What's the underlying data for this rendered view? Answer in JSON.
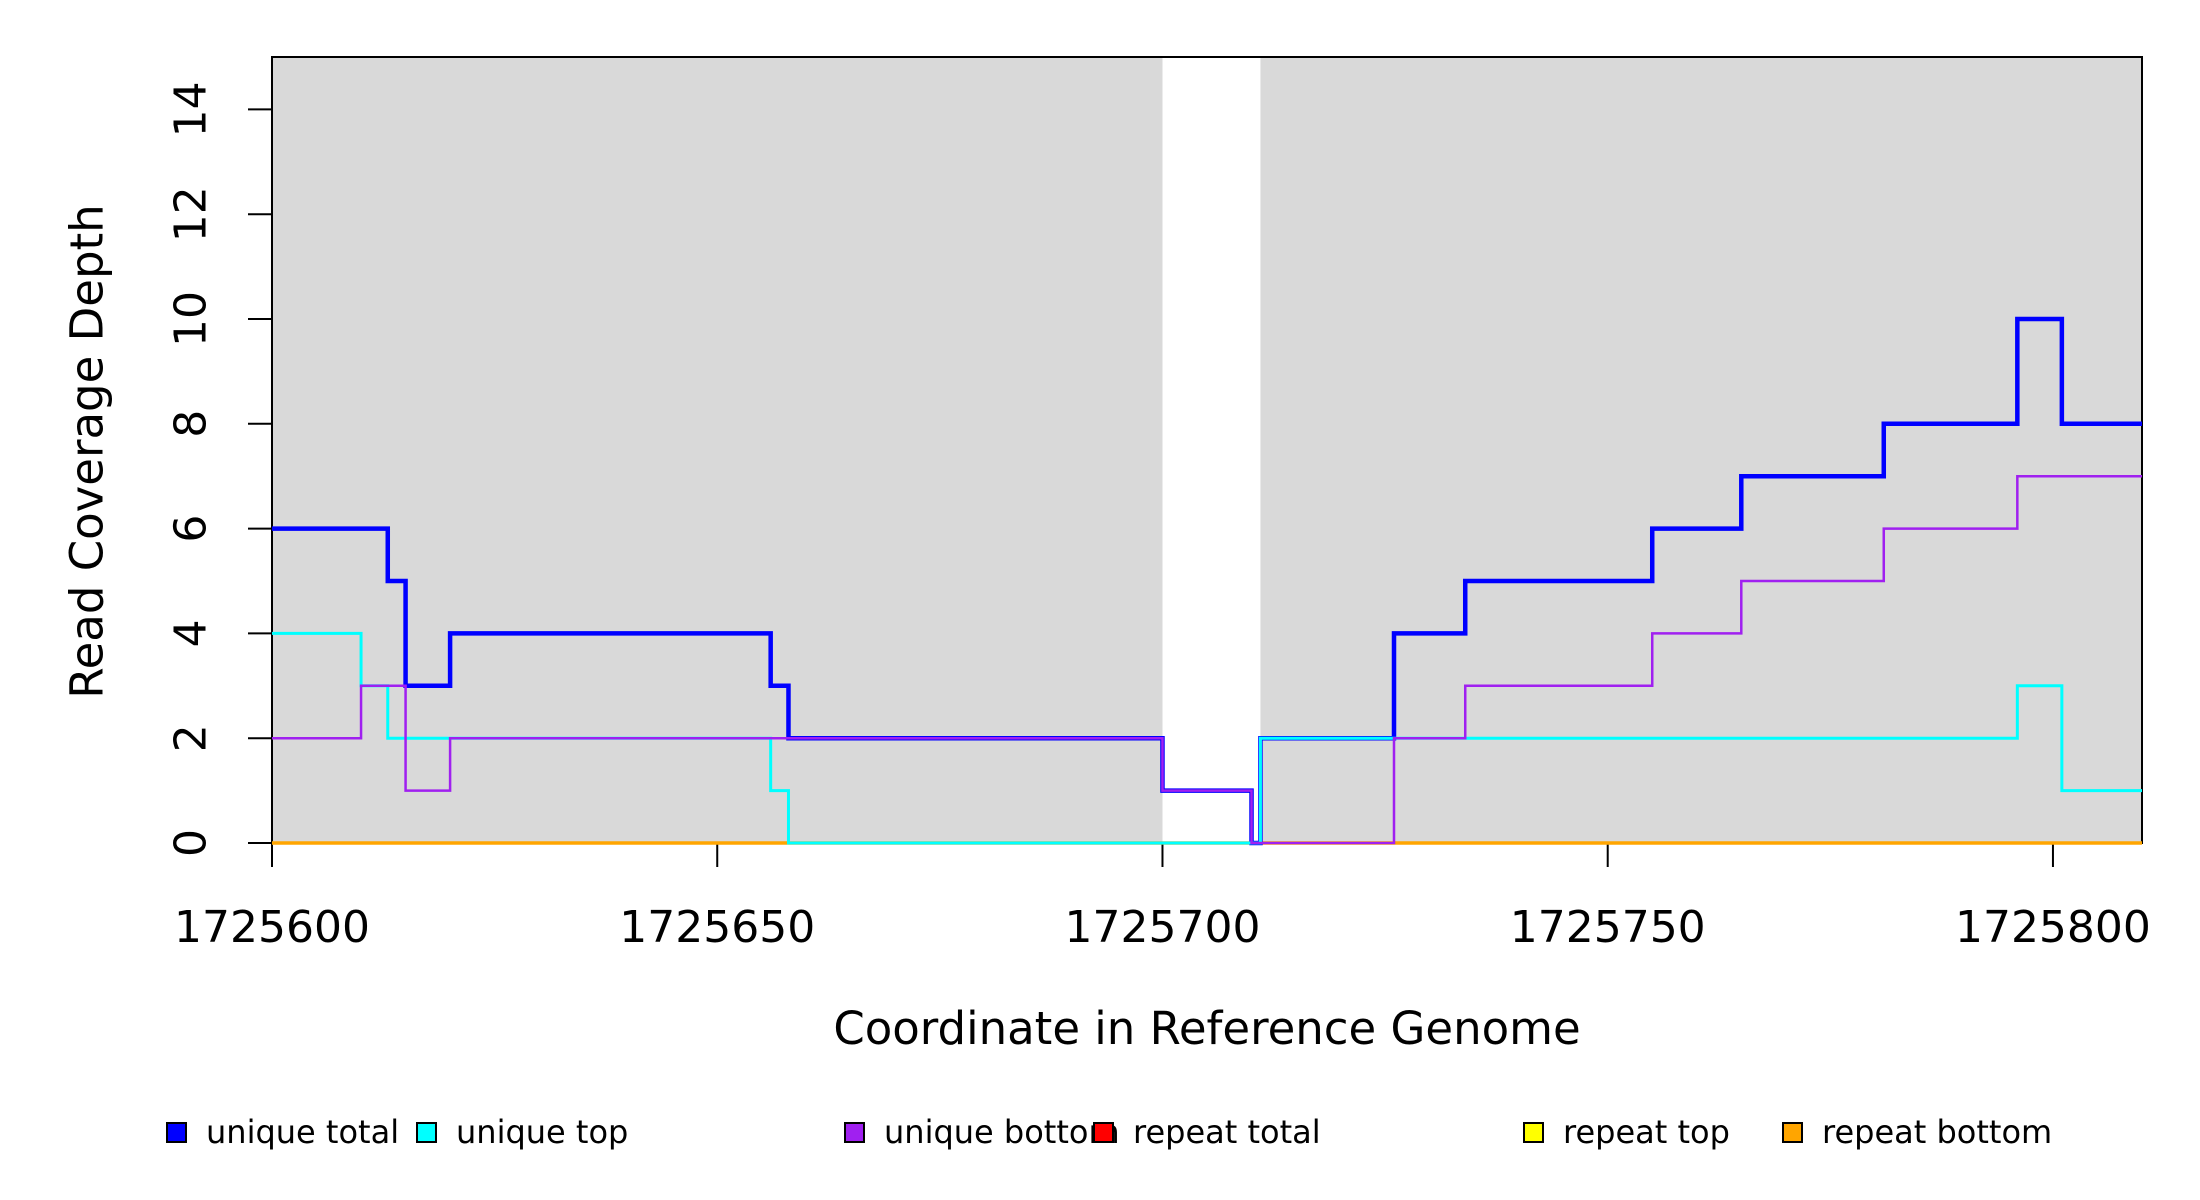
{
  "figure": {
    "background": "#ffffff",
    "plot_background": "#ffffff"
  },
  "chart_data": {
    "type": "line",
    "step": "post",
    "title": "",
    "xlabel": "Coordinate in Reference Genome",
    "ylabel": "Read Coverage Depth",
    "xlim": [
      1725600,
      1725810
    ],
    "ylim": [
      0,
      15
    ],
    "x_ticks": [
      1725600,
      1725650,
      1725700,
      1725750,
      1725800
    ],
    "y_ticks": [
      0,
      2,
      4,
      6,
      8,
      10,
      12,
      14
    ],
    "grid": false,
    "shaded_regions": [
      {
        "name": "shaded-region-left",
        "x0": 1725600,
        "x1": 1725700,
        "color": "#d9d9d9"
      },
      {
        "name": "shaded-region-right",
        "x0": 1725711,
        "x1": 1725810,
        "color": "#d9d9d9"
      }
    ],
    "series": [
      {
        "name": "repeat total",
        "color": "#ff0000",
        "width": 2.5,
        "points": [
          [
            1725600,
            0
          ],
          [
            1725810,
            0
          ]
        ]
      },
      {
        "name": "repeat top",
        "color": "#ffff00",
        "width": 2.5,
        "points": [
          [
            1725600,
            0
          ],
          [
            1725810,
            0
          ]
        ]
      },
      {
        "name": "repeat bottom",
        "color": "#ffa500",
        "width": 3.5,
        "points": [
          [
            1725600,
            0
          ],
          [
            1725810,
            0
          ]
        ]
      },
      {
        "name": "unique total",
        "color": "#0000ff",
        "width": 4.5,
        "points": [
          [
            1725600,
            6
          ],
          [
            1725613,
            5
          ],
          [
            1725615,
            3
          ],
          [
            1725620,
            4
          ],
          [
            1725656,
            3
          ],
          [
            1725658,
            2
          ],
          [
            1725700,
            1
          ],
          [
            1725710,
            0
          ],
          [
            1725711,
            2
          ],
          [
            1725726,
            4
          ],
          [
            1725734,
            5
          ],
          [
            1725755,
            6
          ],
          [
            1725765,
            7
          ],
          [
            1725781,
            8
          ],
          [
            1725796,
            10
          ],
          [
            1725801,
            8
          ],
          [
            1725810,
            8
          ]
        ]
      },
      {
        "name": "unique top",
        "color": "#00ffff",
        "width": 3,
        "points": [
          [
            1725600,
            4
          ],
          [
            1725610,
            3
          ],
          [
            1725613,
            2
          ],
          [
            1725656,
            1
          ],
          [
            1725658,
            0
          ],
          [
            1725711,
            2
          ],
          [
            1725796,
            3
          ],
          [
            1725801,
            1
          ],
          [
            1725810,
            1
          ]
        ]
      },
      {
        "name": "unique bottom",
        "color": "#a020f0",
        "width": 2.5,
        "points": [
          [
            1725600,
            2
          ],
          [
            1725610,
            3
          ],
          [
            1725615,
            1
          ],
          [
            1725620,
            2
          ],
          [
            1725700,
            1
          ],
          [
            1725710,
            0
          ],
          [
            1725726,
            2
          ],
          [
            1725734,
            3
          ],
          [
            1725755,
            4
          ],
          [
            1725765,
            5
          ],
          [
            1725781,
            6
          ],
          [
            1725796,
            7
          ],
          [
            1725810,
            7
          ]
        ]
      }
    ],
    "legend": {
      "position": "bottom",
      "items": [
        {
          "label": "unique total",
          "color": "#0000ff"
        },
        {
          "label": "unique top",
          "color": "#00ffff"
        },
        {
          "label": "unique bottom",
          "color": "#a020f0"
        },
        {
          "label": "repeat total",
          "color": "#ff0000"
        },
        {
          "label": "repeat top",
          "color": "#ffff00"
        },
        {
          "label": "repeat bottom",
          "color": "#ffa500"
        }
      ]
    }
  }
}
